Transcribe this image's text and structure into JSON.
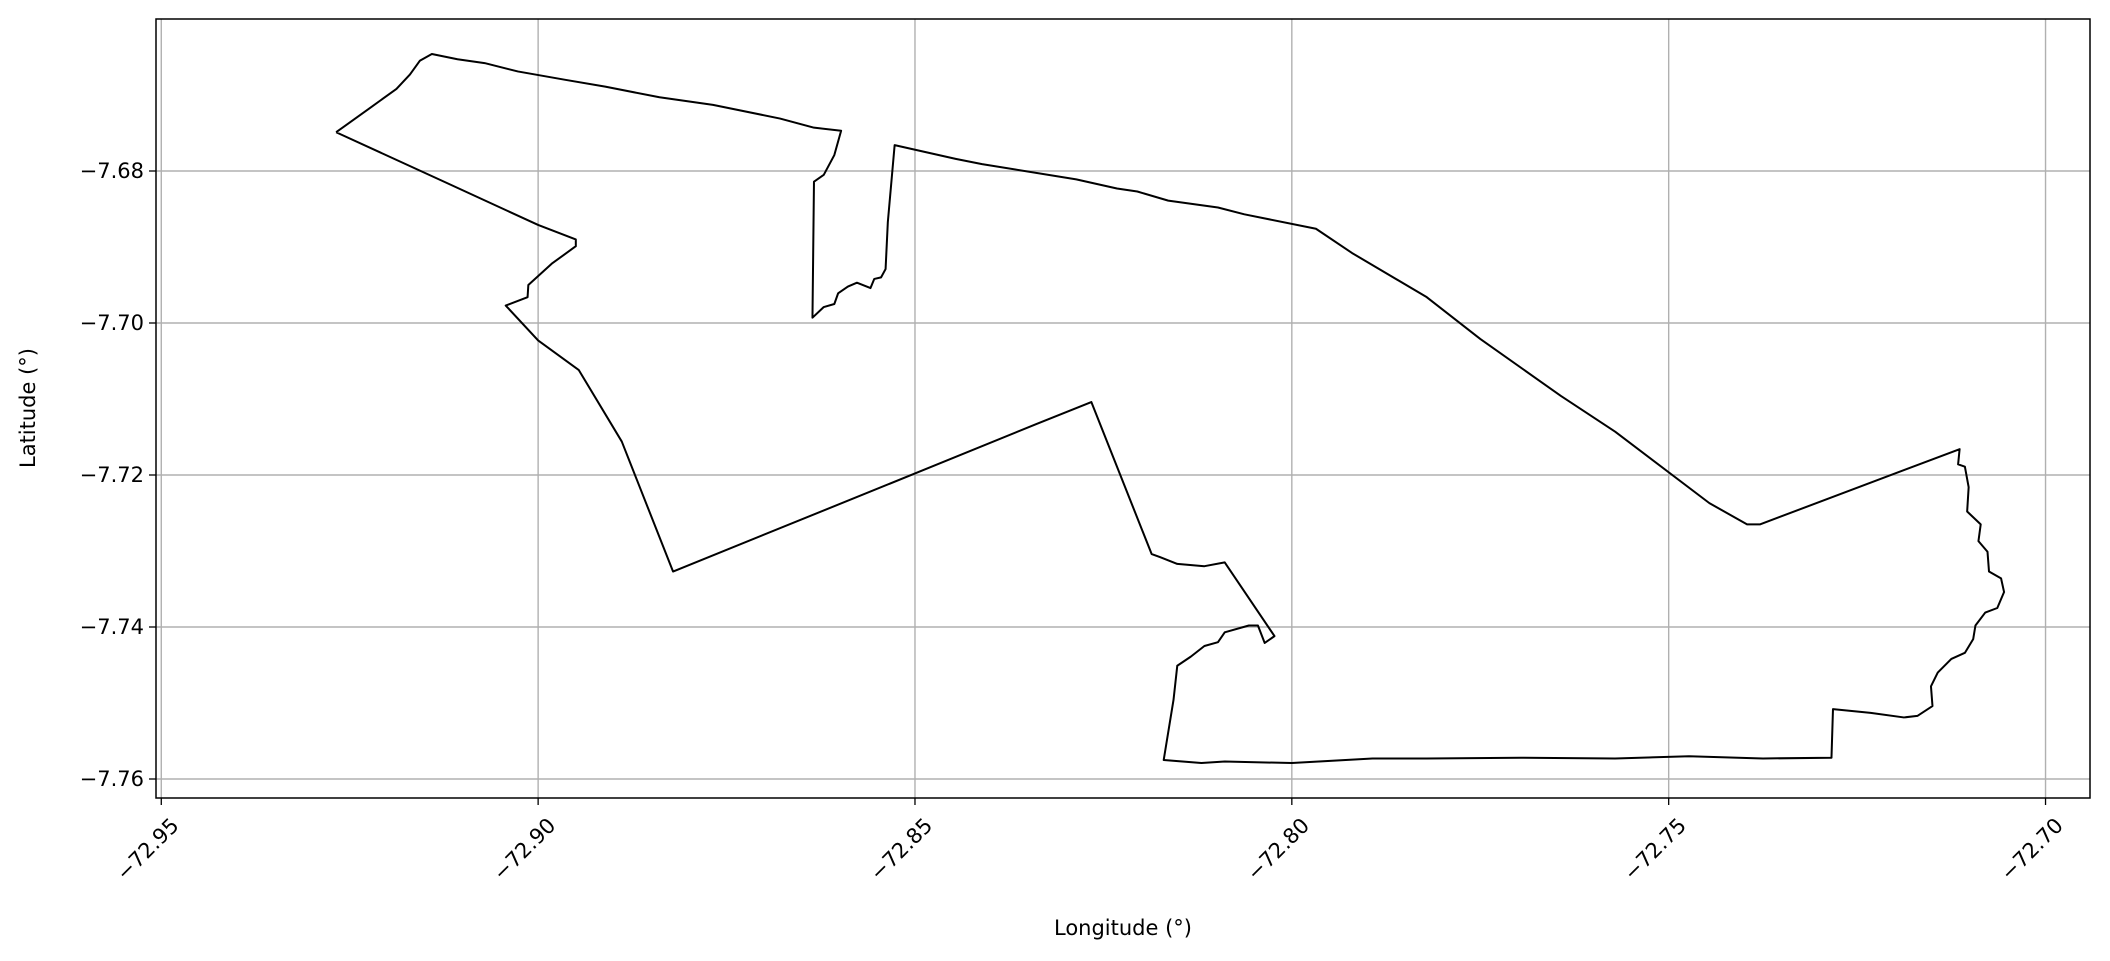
{
  "chart_data": {
    "type": "line",
    "xlabel": "Longitude (°)",
    "ylabel": "Latitude (°)",
    "color": "#000000",
    "grid": true,
    "xlim": [
      -72.9507,
      -72.6941
    ],
    "ylim": [
      -7.7625,
      -7.66
    ],
    "xticks": [
      {
        "value": -72.95,
        "label": "−72.95"
      },
      {
        "value": -72.9,
        "label": "−72.90"
      },
      {
        "value": -72.85,
        "label": "−72.85"
      },
      {
        "value": -72.8,
        "label": "−72.80"
      },
      {
        "value": -72.75,
        "label": "−72.75"
      },
      {
        "value": -72.7,
        "label": "−72.70"
      }
    ],
    "yticks": [
      {
        "value": -7.76,
        "label": "−7.76"
      },
      {
        "value": -7.74,
        "label": "−7.74"
      },
      {
        "value": -7.72,
        "label": "−7.72"
      },
      {
        "value": -7.7,
        "label": "−7.70"
      },
      {
        "value": -7.68,
        "label": "−7.68"
      }
    ],
    "x": [
      -72.9268,
      -72.9223,
      -72.9188,
      -72.917,
      -72.9157,
      -72.9141,
      -72.9107,
      -72.9071,
      -72.9027,
      -72.8964,
      -72.8911,
      -72.8839,
      -72.8768,
      -72.8679,
      -72.8634,
      -72.8598,
      -72.8607,
      -72.8621,
      -72.8634,
      -72.8636,
      -72.8621,
      -72.8607,
      -72.8602,
      -72.8589,
      -72.8577,
      -72.8559,
      -72.8554,
      -72.8545,
      -72.8539,
      -72.8536,
      -72.8527,
      -72.8446,
      -72.8411,
      -72.8286,
      -72.8232,
      -72.8205,
      -72.8164,
      -72.8098,
      -72.8063,
      -72.7968,
      -72.792,
      -72.7821,
      -72.775,
      -72.7643,
      -72.7571,
      -72.7446,
      -72.7396,
      -72.7379,
      -72.7114,
      -72.7116,
      -72.7107,
      -72.7102,
      -72.7104,
      -72.7086,
      -72.7089,
      -72.7077,
      -72.7075,
      -72.7059,
      -72.7055,
      -72.7064,
      -72.708,
      -72.7093,
      -72.7096,
      -72.7107,
      -72.7125,
      -72.7143,
      -72.7152,
      -72.715,
      -72.717,
      -72.7188,
      -72.7232,
      -72.7282,
      -72.7284,
      -72.7375,
      -72.7473,
      -72.7571,
      -72.7696,
      -72.7821,
      -72.7893,
      -72.8,
      -72.8089,
      -72.812,
      -72.817,
      -72.8157,
      -72.8152,
      -72.8134,
      -72.8116,
      -72.8098,
      -72.8089,
      -72.8057,
      -72.8045,
      -72.8036,
      -72.8023,
      -72.8089,
      -72.8116,
      -72.8152,
      -72.8175,
      -72.8186,
      -72.8266,
      -72.8339,
      -72.85,
      -72.8821,
      -72.8889,
      -72.8946,
      -72.9,
      -72.9043,
      -72.9014,
      -72.9013,
      -72.8982,
      -72.895,
      -72.895,
      -72.9,
      -72.9125,
      -72.9268
    ],
    "values": [
      -7.6749,
      -7.6717,
      -7.6692,
      -7.6673,
      -7.6655,
      -7.6646,
      -7.6653,
      -7.6658,
      -7.6669,
      -7.668,
      -7.6689,
      -7.6703,
      -7.6713,
      -7.6731,
      -7.6743,
      -7.6747,
      -7.6779,
      -7.6805,
      -7.6814,
      -7.6993,
      -7.6979,
      -7.6975,
      -7.6961,
      -7.6952,
      -7.6947,
      -7.6954,
      -7.6942,
      -7.694,
      -7.6929,
      -7.6867,
      -7.6766,
      -7.6784,
      -7.6791,
      -7.6811,
      -7.6823,
      -7.6827,
      -7.6839,
      -7.6848,
      -7.6857,
      -7.6876,
      -7.6908,
      -7.6966,
      -7.7021,
      -7.7096,
      -7.7143,
      -7.7237,
      -7.7265,
      -7.7265,
      -7.7166,
      -7.7186,
      -7.7189,
      -7.7216,
      -7.7248,
      -7.7265,
      -7.7287,
      -7.7301,
      -7.7327,
      -7.7336,
      -7.7354,
      -7.7375,
      -7.7381,
      -7.7398,
      -7.7416,
      -7.7434,
      -7.7442,
      -7.746,
      -7.7478,
      -7.7504,
      -7.7517,
      -7.7519,
      -7.7513,
      -7.7508,
      -7.7572,
      -7.7573,
      -7.757,
      -7.7573,
      -7.7572,
      -7.7573,
      -7.7573,
      -7.7579,
      -7.7577,
      -7.7579,
      -7.7575,
      -7.7496,
      -7.7451,
      -7.7439,
      -7.7425,
      -7.742,
      -7.7407,
      -7.7398,
      -7.7398,
      -7.7421,
      -7.7412,
      -7.7315,
      -7.732,
      -7.7317,
      -7.7308,
      -7.7304,
      -7.7104,
      -7.7133,
      -7.7198,
      -7.7327,
      -7.7156,
      -7.7062,
      -7.7023,
      -7.6977,
      -7.6966,
      -7.695,
      -7.6922,
      -7.6899,
      -7.689,
      -7.6871,
      -7.6814,
      -7.6749
    ]
  }
}
